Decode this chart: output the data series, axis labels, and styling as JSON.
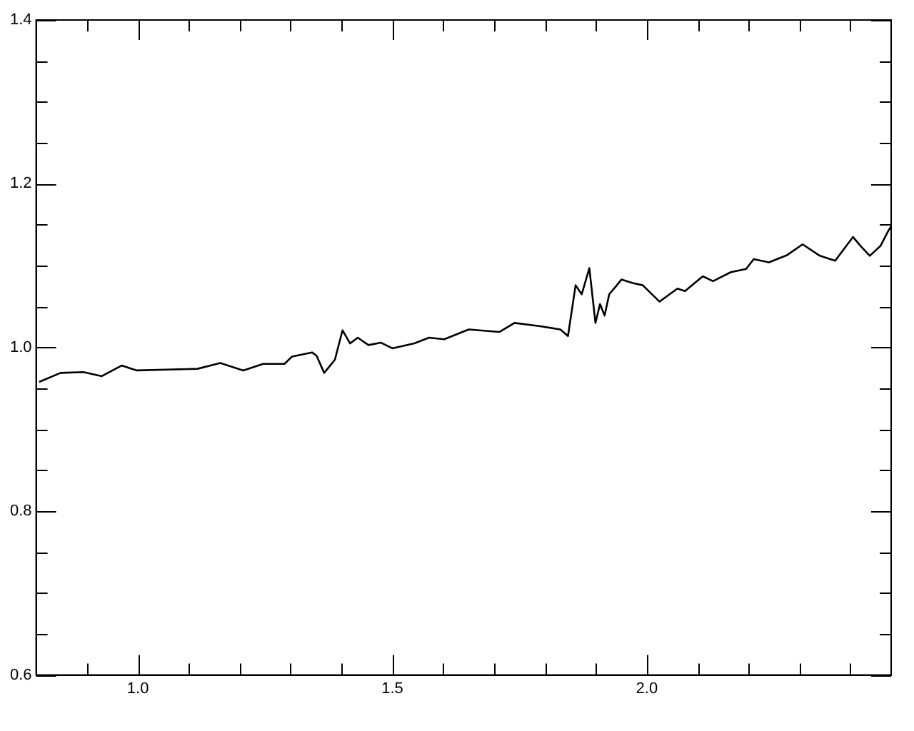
{
  "chart_data": {
    "type": "line",
    "color": "#000000",
    "grid": false,
    "marker": "none",
    "line_style": "solid",
    "xlim": [
      0.8,
      2.48
    ],
    "xticks": [
      {
        "value": 0.9,
        "label": null
      },
      {
        "value": 1.0,
        "label": "1.0"
      },
      {
        "value": 1.1,
        "label": null
      },
      {
        "value": 1.2,
        "label": null
      },
      {
        "value": 1.3,
        "label": null
      },
      {
        "value": 1.4,
        "label": null
      },
      {
        "value": 1.5,
        "label": "1.5"
      },
      {
        "value": 1.6,
        "label": null
      },
      {
        "value": 1.7,
        "label": null
      },
      {
        "value": 1.8,
        "label": null
      },
      {
        "value": 1.9,
        "label": null
      },
      {
        "value": 2.0,
        "label": "2.0"
      },
      {
        "value": 2.1,
        "label": null
      },
      {
        "value": 2.2,
        "label": null
      },
      {
        "value": 2.3,
        "label": null
      },
      {
        "value": 2.4,
        "label": null
      }
    ],
    "ylim": [
      0.6,
      1.4
    ],
    "yticks": [
      0.6,
      {
        "value": 0.65,
        "label": null
      },
      {
        "value": 0.7,
        "label": null
      },
      {
        "value": 0.75,
        "label": null
      },
      0.8,
      {
        "value": 0.85,
        "label": null
      },
      {
        "value": 0.9,
        "label": null
      },
      {
        "value": 0.95,
        "label": null
      },
      {
        "value": 1.0,
        "label": "1.0"
      },
      {
        "value": 1.05,
        "label": null
      },
      {
        "value": 1.1,
        "label": null
      },
      {
        "value": 1.15,
        "label": null
      },
      1.2,
      {
        "value": 1.25,
        "label": null
      },
      {
        "value": 1.3,
        "label": null
      },
      {
        "value": 1.35,
        "label": null
      },
      1.4
    ],
    "x": [
      0.806,
      0.848,
      0.893,
      0.929,
      0.968,
      0.998,
      1.057,
      1.117,
      1.162,
      1.207,
      1.246,
      1.288,
      1.303,
      1.342,
      1.351,
      1.366,
      1.387,
      1.402,
      1.417,
      1.432,
      1.453,
      1.477,
      1.5,
      1.543,
      1.572,
      1.602,
      1.65,
      1.71,
      1.74,
      1.791,
      1.83,
      1.845,
      1.86,
      1.872,
      1.887,
      1.899,
      1.908,
      1.917,
      1.926,
      1.941,
      1.95,
      1.971,
      1.992,
      2.025,
      2.06,
      2.075,
      2.11,
      2.13,
      2.165,
      2.195,
      2.21,
      2.24,
      2.276,
      2.306,
      2.34,
      2.37,
      2.405,
      2.42,
      2.438,
      2.459,
      2.474,
      2.48
    ],
    "values": [
      0.958,
      0.969,
      0.97,
      0.965,
      0.978,
      0.972,
      0.973,
      0.974,
      0.981,
      0.972,
      0.98,
      0.98,
      0.989,
      0.994,
      0.99,
      0.969,
      0.985,
      1.021,
      1.005,
      1.012,
      1.003,
      1.006,
      0.999,
      1.005,
      1.012,
      1.01,
      1.022,
      1.019,
      1.03,
      1.026,
      1.022,
      1.014,
      1.076,
      1.065,
      1.097,
      1.03,
      1.053,
      1.039,
      1.065,
      1.076,
      1.083,
      1.079,
      1.076,
      1.056,
      1.072,
      1.069,
      1.087,
      1.081,
      1.092,
      1.096,
      1.108,
      1.104,
      1.113,
      1.126,
      1.112,
      1.106,
      1.135,
      1.124,
      1.112,
      1.124,
      1.142,
      1.148
    ]
  }
}
